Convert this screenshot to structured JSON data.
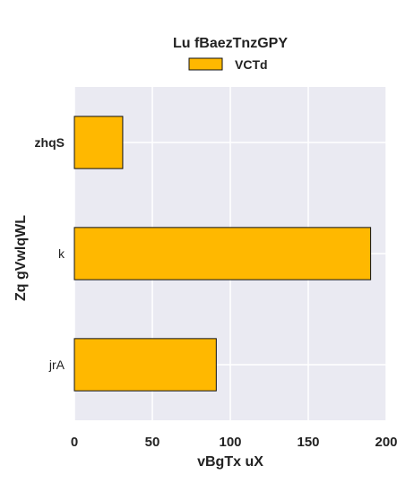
{
  "chart_data": {
    "type": "bar",
    "orientation": "horizontal",
    "title": "Lu fBaezTnzGPY",
    "xlabel": "vBgTx  uX",
    "ylabel": "Zq gVwlqWL",
    "categories": [
      "zhqS",
      "k",
      "jrA"
    ],
    "bold_categories": [
      "zhqS"
    ],
    "series": [
      {
        "name": "VCTd",
        "values": [
          31,
          190,
          91
        ]
      }
    ],
    "xlim": [
      0,
      200
    ],
    "xticks": [
      0,
      50,
      100,
      150,
      200
    ],
    "grid": true,
    "legend_position": "top-center",
    "colors": {
      "bar_fill": "#FFB800",
      "bar_edge": "#111111",
      "plot_background": "#EAEAF2",
      "grid": "#FFFFFF"
    }
  }
}
